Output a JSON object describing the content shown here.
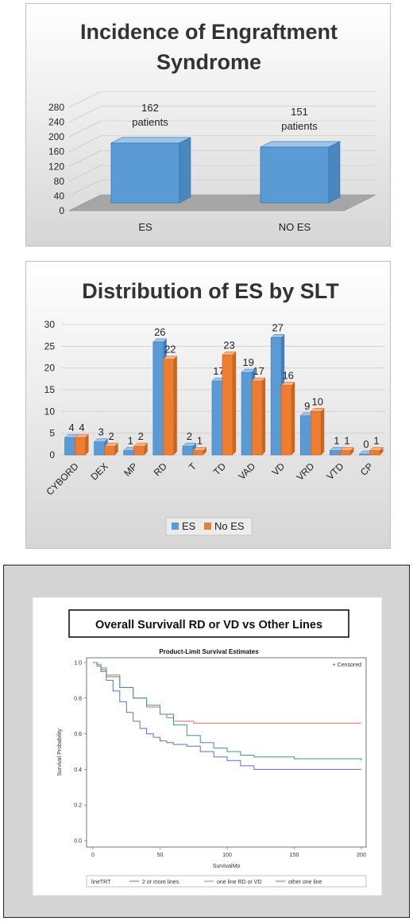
{
  "chart_data": [
    {
      "type": "bar",
      "title_lines": [
        "Incidence of Engraftment",
        "Syndrome"
      ],
      "categories": [
        "ES",
        "NO ES"
      ],
      "values": [
        162,
        151
      ],
      "data_labels": [
        [
          "162",
          "patients"
        ],
        [
          "151",
          "patients"
        ]
      ],
      "yticks": [
        0,
        40,
        80,
        120,
        160,
        200,
        240,
        280
      ],
      "ylim": [
        0,
        280
      ],
      "colors": {
        "bar": "#5b9bd5",
        "bar_top": "#9dc3e6",
        "floor": "#a6a6a6"
      }
    },
    {
      "type": "bar",
      "title": "Distribution of ES by SLT",
      "categories": [
        "CYBORD",
        "DEX",
        "MP",
        "RD",
        "T",
        "TD",
        "VAD",
        "VD",
        "VRD",
        "VTD",
        "CP"
      ],
      "series": [
        {
          "name": "ES",
          "values": [
            4,
            3,
            1,
            26,
            2,
            17,
            19,
            27,
            9,
            1,
            0
          ],
          "color": "#5b9bd5"
        },
        {
          "name": "No ES",
          "values": [
            4,
            2,
            2,
            22,
            1,
            23,
            17,
            16,
            10,
            1,
            1
          ],
          "color": "#ed7d31"
        }
      ],
      "value_labels": [
        [
          "4",
          "3",
          "1",
          "26",
          "2",
          "17",
          "19",
          "27",
          "9",
          "1",
          "0"
        ],
        [
          "4",
          "2",
          "2",
          "22",
          "1",
          "23",
          "17",
          "16",
          "10",
          "1",
          "1"
        ]
      ],
      "yticks": [
        0,
        5,
        10,
        15,
        20,
        25,
        30
      ],
      "ylim": [
        0,
        30
      ],
      "legend": "bottom"
    },
    {
      "type": "line",
      "heading": "Overall Survivall RD or VD vs Other Lines",
      "title": "Product-Limit Survival Estimates",
      "xlabel": "SurvivalMo",
      "ylabel": "Survival Probability",
      "xticks": [
        "0",
        "50",
        "100",
        "150",
        "200"
      ],
      "yticks": [
        "0.0",
        "0.2",
        "0.4",
        "0.6",
        "0.8",
        "1.0"
      ],
      "xlim": [
        0,
        200
      ],
      "ylim": [
        0,
        1
      ],
      "censored_label": "+ Censored",
      "legend_title": "lineTRT",
      "series": [
        {
          "name": "2 or more lines",
          "color": "#5b6fc8",
          "x": [
            0,
            3,
            6,
            10,
            15,
            20,
            25,
            30,
            35,
            40,
            45,
            50,
            55,
            60,
            70,
            80,
            90,
            100,
            110,
            120,
            150,
            200
          ],
          "y": [
            1.0,
            0.98,
            0.95,
            0.9,
            0.84,
            0.78,
            0.72,
            0.67,
            0.63,
            0.6,
            0.58,
            0.56,
            0.55,
            0.54,
            0.53,
            0.5,
            0.47,
            0.45,
            0.42,
            0.4,
            0.4,
            0.4
          ]
        },
        {
          "name": "one line RD or VD",
          "color": "#e06a5a",
          "x": [
            0,
            3,
            6,
            10,
            20,
            30,
            40,
            50,
            55,
            60,
            65,
            75,
            200
          ],
          "y": [
            1.0,
            0.99,
            0.97,
            0.93,
            0.86,
            0.8,
            0.75,
            0.71,
            0.69,
            0.67,
            0.67,
            0.66,
            0.66
          ]
        },
        {
          "name": "other one line",
          "color": "#3a9a8a",
          "x": [
            0,
            3,
            6,
            10,
            20,
            30,
            40,
            50,
            60,
            70,
            80,
            90,
            100,
            110,
            120,
            150,
            200
          ],
          "y": [
            1.0,
            0.98,
            0.96,
            0.92,
            0.86,
            0.8,
            0.76,
            0.71,
            0.65,
            0.59,
            0.55,
            0.52,
            0.5,
            0.48,
            0.47,
            0.46,
            0.45
          ]
        }
      ]
    }
  ]
}
